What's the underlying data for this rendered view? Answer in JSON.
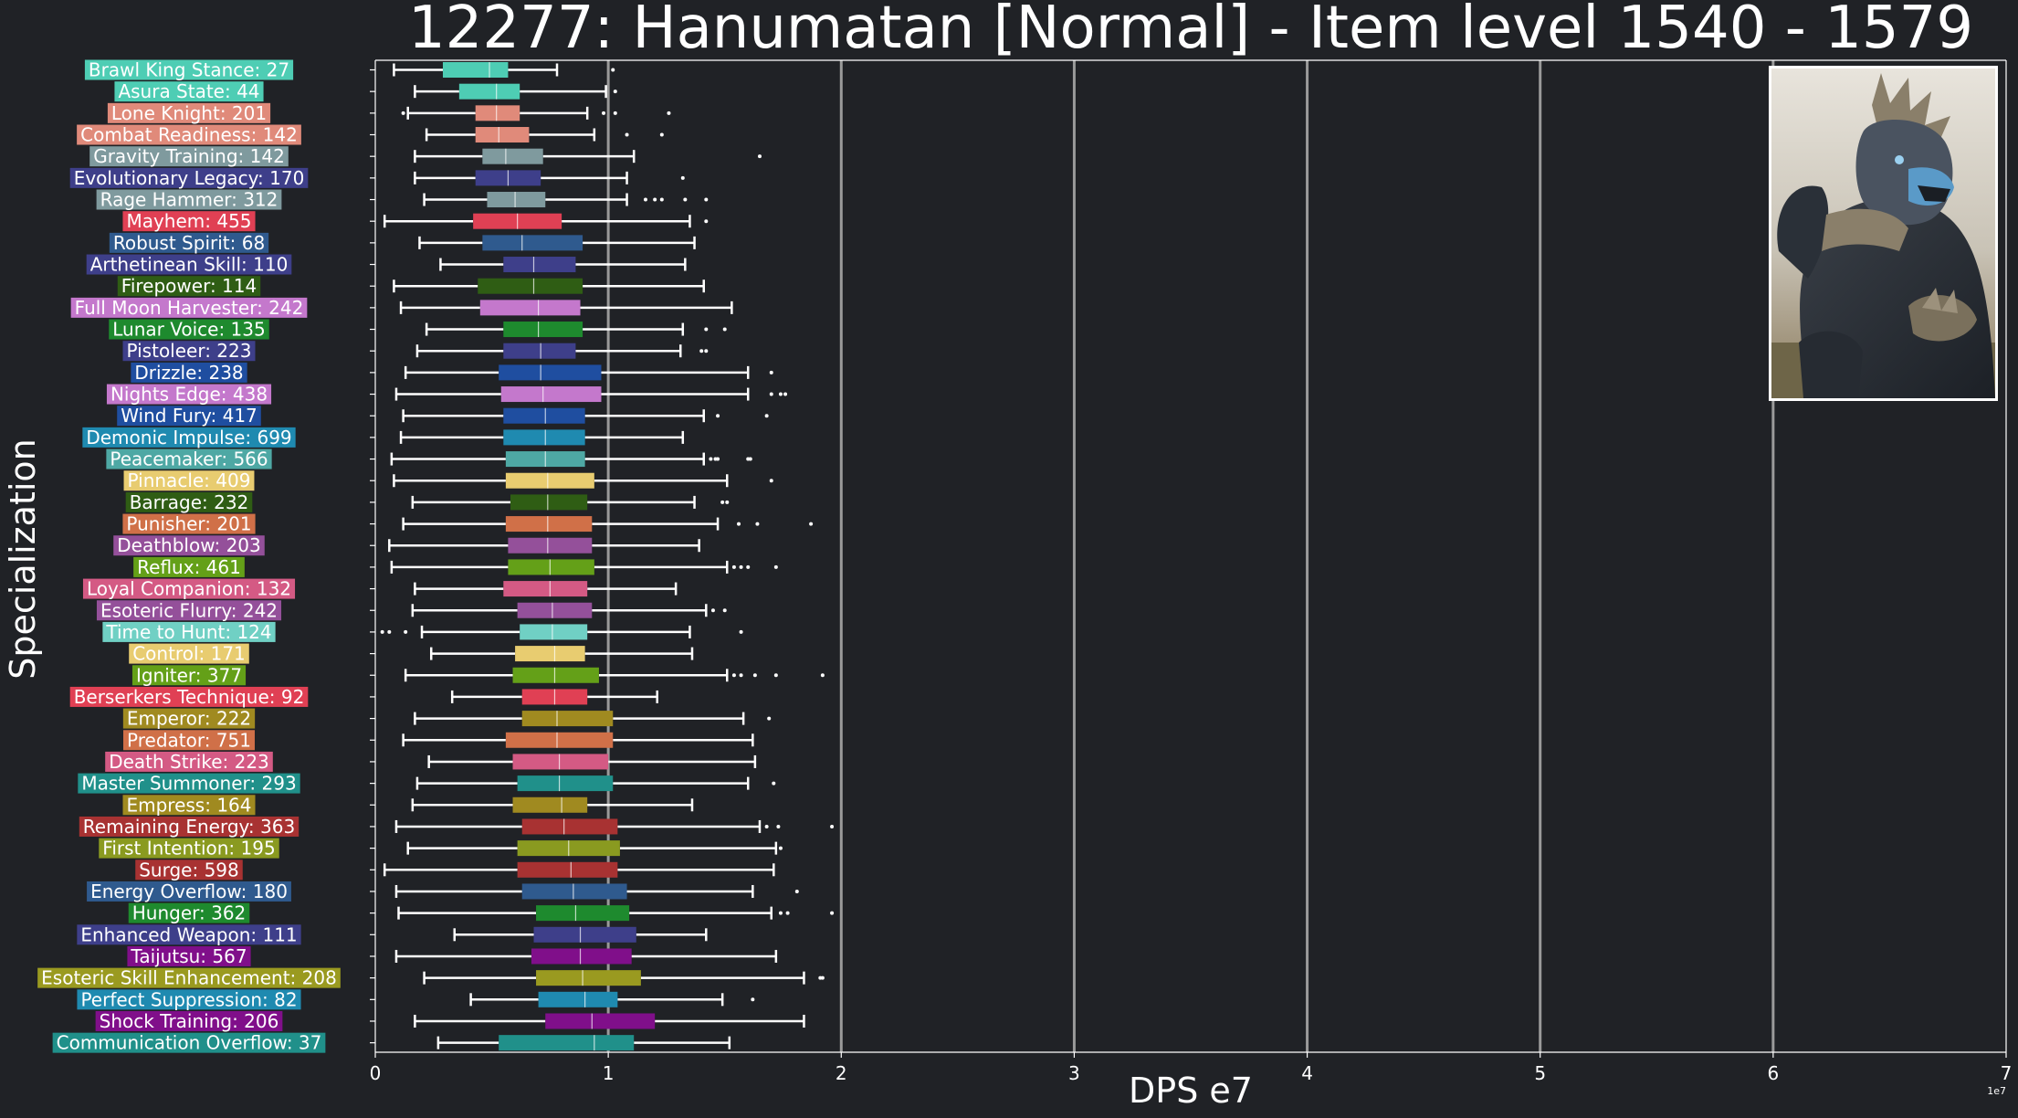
{
  "chart_data": {
    "type": "boxplot",
    "orientation": "horizontal",
    "title": "12277: Hanumatan [Normal] - Item level 1540 - 1579",
    "xlabel": "DPS e7",
    "ylabel": "Specialization",
    "x_offset_label": "1e7",
    "xlim": [
      0,
      7
    ],
    "xticks": [
      "0",
      "1",
      "2",
      "3",
      "4",
      "5",
      "6",
      "7"
    ],
    "grid": "vertical",
    "colors": {
      "background": "#202226",
      "grid": "#9a9a9a",
      "whisker": "#ffffff"
    },
    "series": [
      {
        "label": "Brawl King Stance: 27",
        "color": "#4ecdb4",
        "min": 0.08,
        "q1": 0.29,
        "median": 0.49,
        "q3": 0.57,
        "max": 0.78,
        "outliers": [
          1.02
        ]
      },
      {
        "label": "Asura State: 44",
        "color": "#4ecdb4",
        "min": 0.17,
        "q1": 0.36,
        "median": 0.52,
        "q3": 0.62,
        "max": 0.99,
        "outliers": [
          1.03
        ]
      },
      {
        "label": "Lone Knight: 201",
        "color": "#e08a7a",
        "min": 0.14,
        "q1": 0.43,
        "median": 0.52,
        "q3": 0.62,
        "max": 0.91,
        "outliers": [
          0.12,
          0.98,
          1.03,
          1.26
        ]
      },
      {
        "label": "Combat Readiness: 142",
        "color": "#e08a7a",
        "min": 0.22,
        "q1": 0.43,
        "median": 0.53,
        "q3": 0.66,
        "max": 0.94,
        "outliers": [
          1.08,
          1.23
        ]
      },
      {
        "label": "Gravity Training: 142",
        "color": "#7f9a9e",
        "min": 0.17,
        "q1": 0.46,
        "median": 0.56,
        "q3": 0.72,
        "max": 1.11,
        "outliers": [
          1.65
        ]
      },
      {
        "label": "Evolutionary Legacy: 170",
        "color": "#3e3f8a",
        "min": 0.17,
        "q1": 0.43,
        "median": 0.57,
        "q3": 0.71,
        "max": 1.08,
        "outliers": [
          1.32
        ]
      },
      {
        "label": "Rage Hammer: 312",
        "color": "#7f9a9e",
        "min": 0.21,
        "q1": 0.48,
        "median": 0.6,
        "q3": 0.73,
        "max": 1.08,
        "outliers": [
          1.16,
          1.2,
          1.23,
          1.33,
          1.42
        ]
      },
      {
        "label": "Mayhem: 455",
        "color": "#e04054",
        "min": 0.04,
        "q1": 0.42,
        "median": 0.61,
        "q3": 0.8,
        "max": 1.35,
        "outliers": [
          1.42
        ]
      },
      {
        "label": "Robust Spirit: 68",
        "color": "#2f5a8e",
        "min": 0.19,
        "q1": 0.46,
        "median": 0.63,
        "q3": 0.89,
        "max": 1.37,
        "outliers": []
      },
      {
        "label": "Arthetinean Skill: 110",
        "color": "#3e3f8a",
        "min": 0.28,
        "q1": 0.55,
        "median": 0.68,
        "q3": 0.86,
        "max": 1.33,
        "outliers": []
      },
      {
        "label": "Firepower: 114",
        "color": "#2f5d14",
        "min": 0.08,
        "q1": 0.44,
        "median": 0.68,
        "q3": 0.89,
        "max": 1.41,
        "outliers": []
      },
      {
        "label": "Full Moon Harvester: 242",
        "color": "#c478cc",
        "min": 0.11,
        "q1": 0.45,
        "median": 0.7,
        "q3": 0.88,
        "max": 1.53,
        "outliers": []
      },
      {
        "label": "Lunar Voice: 135",
        "color": "#1e8a2e",
        "min": 0.22,
        "q1": 0.55,
        "median": 0.7,
        "q3": 0.89,
        "max": 1.32,
        "outliers": [
          1.42,
          1.5
        ]
      },
      {
        "label": "Pistoleer: 223",
        "color": "#3e3f8a",
        "min": 0.18,
        "q1": 0.55,
        "median": 0.71,
        "q3": 0.86,
        "max": 1.31,
        "outliers": [
          1.4,
          1.42
        ]
      },
      {
        "label": "Drizzle: 238",
        "color": "#1f4ea0",
        "min": 0.13,
        "q1": 0.53,
        "median": 0.71,
        "q3": 0.97,
        "max": 1.6,
        "outliers": [
          1.7
        ]
      },
      {
        "label": "Nights Edge: 438",
        "color": "#c478cc",
        "min": 0.09,
        "q1": 0.54,
        "median": 0.72,
        "q3": 0.97,
        "max": 1.6,
        "outliers": [
          1.7,
          1.74,
          1.76
        ]
      },
      {
        "label": "Wind Fury: 417",
        "color": "#1f4ea0",
        "min": 0.12,
        "q1": 0.55,
        "median": 0.73,
        "q3": 0.9,
        "max": 1.41,
        "outliers": [
          1.47,
          1.68
        ]
      },
      {
        "label": "Demonic Impulse: 699",
        "color": "#1f8ab0",
        "min": 0.11,
        "q1": 0.55,
        "median": 0.73,
        "q3": 0.9,
        "max": 1.32,
        "outliers": []
      },
      {
        "label": "Peacemaker: 566",
        "color": "#4ea8a4",
        "min": 0.07,
        "q1": 0.56,
        "median": 0.73,
        "q3": 0.9,
        "max": 1.41,
        "outliers": [
          1.44,
          1.46,
          1.47,
          1.6,
          1.61
        ]
      },
      {
        "label": "Pinnacle: 409",
        "color": "#e8cc70",
        "min": 0.08,
        "q1": 0.56,
        "median": 0.74,
        "q3": 0.94,
        "max": 1.51,
        "outliers": [
          1.7
        ]
      },
      {
        "label": "Barrage: 232",
        "color": "#2f5d14",
        "min": 0.16,
        "q1": 0.58,
        "median": 0.74,
        "q3": 0.91,
        "max": 1.37,
        "outliers": [
          1.49,
          1.51
        ]
      },
      {
        "label": "Punisher: 201",
        "color": "#d07048",
        "min": 0.12,
        "q1": 0.56,
        "median": 0.74,
        "q3": 0.93,
        "max": 1.47,
        "outliers": [
          1.56,
          1.64,
          1.87
        ]
      },
      {
        "label": "Deathblow: 203",
        "color": "#94509a",
        "min": 0.06,
        "q1": 0.57,
        "median": 0.74,
        "q3": 0.93,
        "max": 1.39,
        "outliers": []
      },
      {
        "label": "Reflux: 461",
        "color": "#64a018",
        "min": 0.07,
        "q1": 0.57,
        "median": 0.75,
        "q3": 0.94,
        "max": 1.51,
        "outliers": [
          1.54,
          1.57,
          1.6,
          1.72
        ]
      },
      {
        "label": "Loyal Companion: 132",
        "color": "#d45a84",
        "min": 0.17,
        "q1": 0.55,
        "median": 0.75,
        "q3": 0.91,
        "max": 1.29,
        "outliers": []
      },
      {
        "label": "Esoteric Flurry: 242",
        "color": "#94509a",
        "min": 0.16,
        "q1": 0.61,
        "median": 0.76,
        "q3": 0.93,
        "max": 1.42,
        "outliers": [
          1.45,
          1.5
        ]
      },
      {
        "label": "Time to Hunt: 124",
        "color": "#70d0c4",
        "min": 0.2,
        "q1": 0.62,
        "median": 0.76,
        "q3": 0.91,
        "max": 1.35,
        "outliers": [
          0.03,
          0.06,
          0.13,
          1.57
        ]
      },
      {
        "label": "Control: 171",
        "color": "#e8cc70",
        "min": 0.24,
        "q1": 0.6,
        "median": 0.77,
        "q3": 0.9,
        "max": 1.36,
        "outliers": []
      },
      {
        "label": "Igniter: 377",
        "color": "#64a018",
        "min": 0.13,
        "q1": 0.59,
        "median": 0.77,
        "q3": 0.96,
        "max": 1.51,
        "outliers": [
          1.54,
          1.57,
          1.63,
          1.72,
          1.92
        ]
      },
      {
        "label": "Berserkers Technique: 92",
        "color": "#e04054",
        "min": 0.33,
        "q1": 0.63,
        "median": 0.77,
        "q3": 0.91,
        "max": 1.21,
        "outliers": []
      },
      {
        "label": "Emperor: 222",
        "color": "#a08a20",
        "min": 0.17,
        "q1": 0.63,
        "median": 0.78,
        "q3": 1.02,
        "max": 1.58,
        "outliers": [
          1.69
        ]
      },
      {
        "label": "Predator: 751",
        "color": "#d07048",
        "min": 0.12,
        "q1": 0.56,
        "median": 0.78,
        "q3": 1.02,
        "max": 1.62,
        "outliers": []
      },
      {
        "label": "Death Strike: 223",
        "color": "#d45a84",
        "min": 0.23,
        "q1": 0.59,
        "median": 0.79,
        "q3": 1.0,
        "max": 1.63,
        "outliers": []
      },
      {
        "label": "Master Summoner: 293",
        "color": "#20908a",
        "min": 0.18,
        "q1": 0.61,
        "median": 0.79,
        "q3": 1.02,
        "max": 1.6,
        "outliers": [
          1.71
        ]
      },
      {
        "label": "Empress: 164",
        "color": "#a08a20",
        "min": 0.16,
        "q1": 0.59,
        "median": 0.8,
        "q3": 0.91,
        "max": 1.36,
        "outliers": []
      },
      {
        "label": "Remaining Energy: 363",
        "color": "#a83232",
        "min": 0.09,
        "q1": 0.63,
        "median": 0.81,
        "q3": 1.04,
        "max": 1.65,
        "outliers": [
          1.68,
          1.73,
          1.96
        ]
      },
      {
        "label": "First Intention: 195",
        "color": "#8a9a20",
        "min": 0.14,
        "q1": 0.61,
        "median": 0.83,
        "q3": 1.05,
        "max": 1.72,
        "outliers": [
          1.74
        ]
      },
      {
        "label": "Surge: 598",
        "color": "#a83232",
        "min": 0.04,
        "q1": 0.61,
        "median": 0.84,
        "q3": 1.04,
        "max": 1.71,
        "outliers": []
      },
      {
        "label": "Energy Overflow: 180",
        "color": "#2f5a8e",
        "min": 0.09,
        "q1": 0.63,
        "median": 0.85,
        "q3": 1.08,
        "max": 1.62,
        "outliers": [
          1.81
        ]
      },
      {
        "label": "Hunger: 362",
        "color": "#1e8a2e",
        "min": 0.1,
        "q1": 0.69,
        "median": 0.86,
        "q3": 1.09,
        "max": 1.7,
        "outliers": [
          1.74,
          1.77,
          1.96
        ]
      },
      {
        "label": "Enhanced Weapon: 111",
        "color": "#3e3f8a",
        "min": 0.34,
        "q1": 0.68,
        "median": 0.88,
        "q3": 1.12,
        "max": 1.42,
        "outliers": []
      },
      {
        "label": "Taijutsu: 567",
        "color": "#800f8a",
        "min": 0.09,
        "q1": 0.67,
        "median": 0.88,
        "q3": 1.1,
        "max": 1.72,
        "outliers": []
      },
      {
        "label": "Esoteric Skill Enhancement: 208",
        "color": "#9a9a20",
        "min": 0.21,
        "q1": 0.69,
        "median": 0.89,
        "q3": 1.14,
        "max": 1.84,
        "outliers": [
          1.91,
          1.92
        ]
      },
      {
        "label": "Perfect Suppression: 82",
        "color": "#1f8ab0",
        "min": 0.41,
        "q1": 0.7,
        "median": 0.9,
        "q3": 1.04,
        "max": 1.49,
        "outliers": [
          1.62
        ]
      },
      {
        "label": "Shock Training: 206",
        "color": "#800f8a",
        "min": 0.17,
        "q1": 0.73,
        "median": 0.93,
        "q3": 1.2,
        "max": 1.84,
        "outliers": []
      },
      {
        "label": "Communication Overflow: 37",
        "color": "#20908a",
        "min": 0.27,
        "q1": 0.53,
        "median": 0.94,
        "q3": 1.11,
        "max": 1.52,
        "outliers": []
      }
    ]
  }
}
